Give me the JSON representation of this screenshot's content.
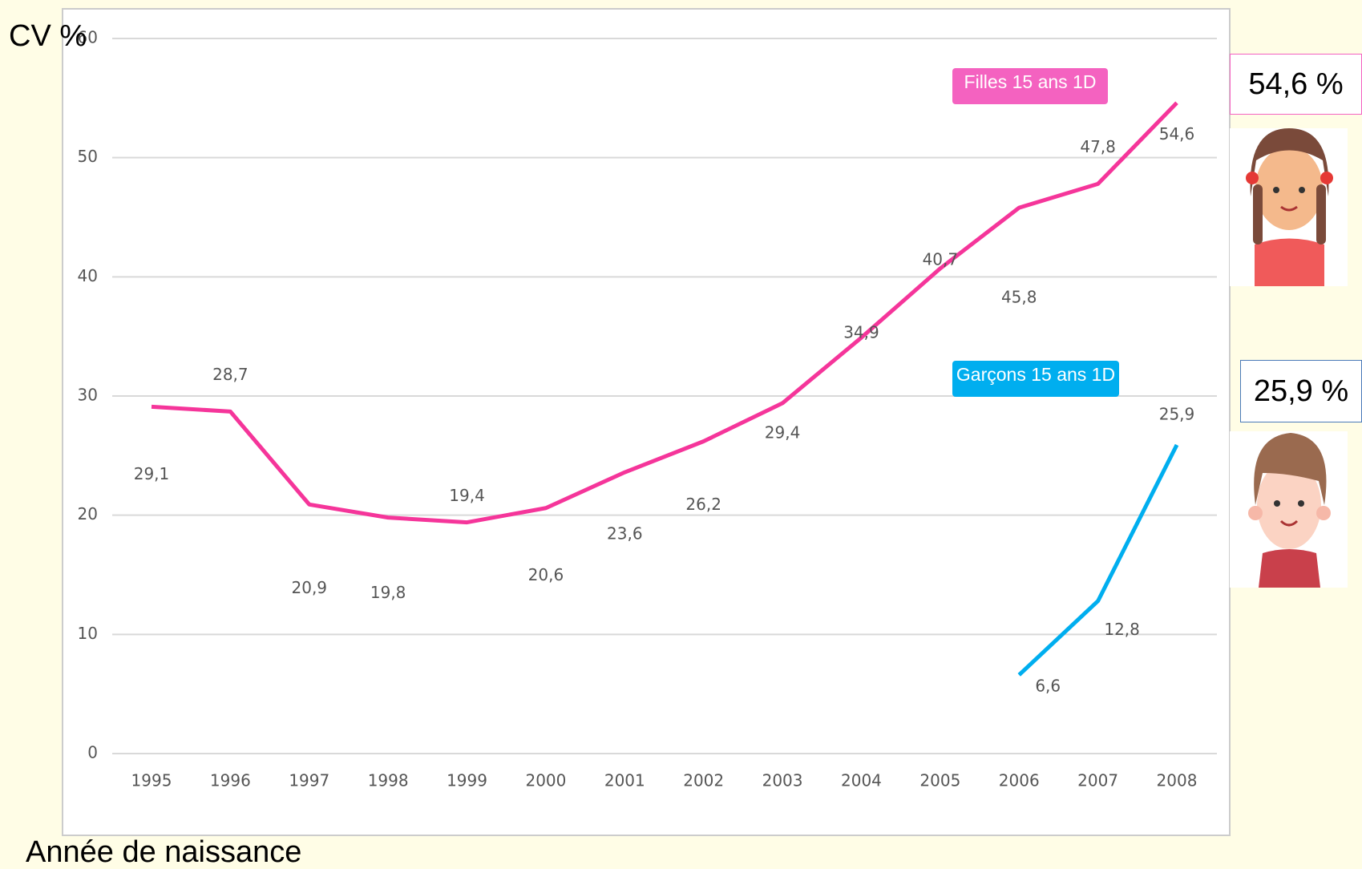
{
  "chart_data": {
    "type": "line",
    "y_label": "CV %",
    "x_label": "Année de naissance",
    "categories": [
      "1995",
      "1996",
      "1997",
      "1998",
      "1999",
      "2000",
      "2001",
      "2002",
      "2003",
      "2004",
      "2005",
      "2006",
      "2007",
      "2008"
    ],
    "series": [
      {
        "name": "Filles 15 ans 1D",
        "color": "#f5359a",
        "values": [
          29.1,
          28.7,
          20.9,
          19.8,
          19.4,
          20.6,
          23.6,
          26.2,
          29.4,
          34.9,
          40.7,
          45.8,
          47.8,
          54.6
        ],
        "value_labels": [
          "29,1",
          "28,7",
          "20,9",
          "19,8",
          "19,4",
          "20,6",
          "23,6",
          "26,2",
          "29,4",
          "34,9",
          "40,7",
          "45,8",
          "47,8",
          "54,6"
        ]
      },
      {
        "name": "Garçons 15 ans 1D",
        "color": "#00aeef",
        "values": [
          null,
          null,
          null,
          null,
          null,
          null,
          null,
          null,
          null,
          null,
          null,
          6.6,
          12.8,
          25.9
        ],
        "value_labels": [
          null,
          null,
          null,
          null,
          null,
          null,
          null,
          null,
          null,
          null,
          null,
          "6,6",
          "12,8",
          "25,9"
        ]
      }
    ],
    "callouts": [
      "54,6 %",
      "25,9 %"
    ],
    "ylim": [
      0,
      60
    ],
    "yticks": [
      0,
      10,
      20,
      30,
      40,
      50,
      60
    ],
    "grid": true
  }
}
